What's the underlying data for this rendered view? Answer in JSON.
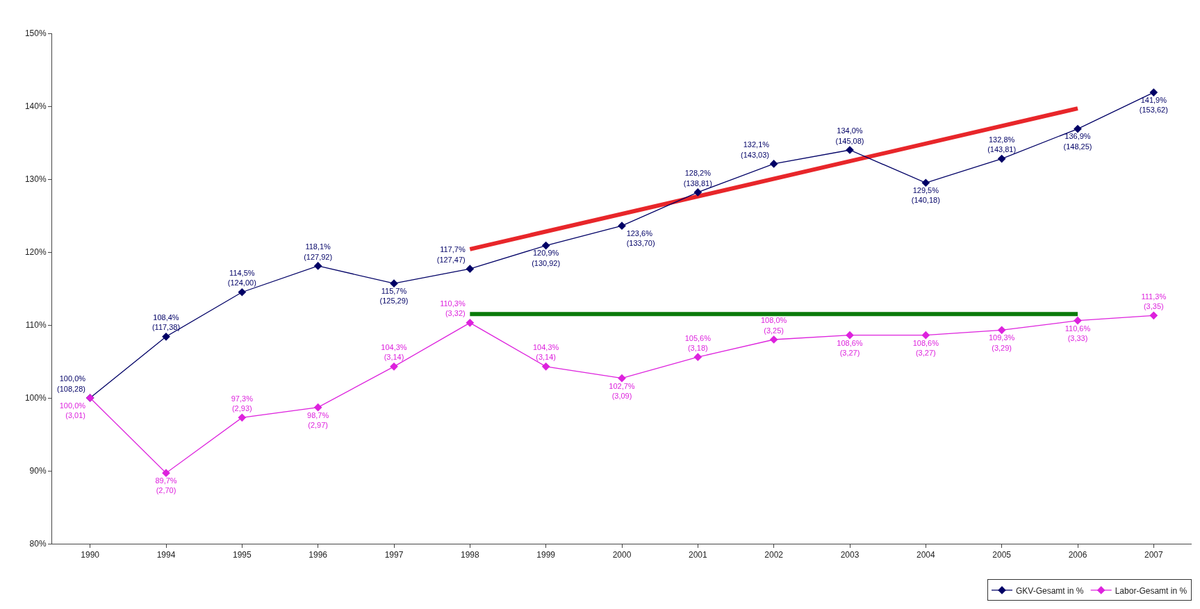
{
  "chart_data": {
    "type": "line",
    "categories": [
      "1990",
      "1994",
      "1995",
      "1996",
      "1997",
      "1998",
      "1999",
      "2000",
      "2001",
      "2002",
      "2003",
      "2004",
      "2005",
      "2006",
      "2007"
    ],
    "series": [
      {
        "name": "GKV-Gesamt in %",
        "color": "#000066",
        "marker": "diamond",
        "values": [
          100.0,
          108.4,
          114.5,
          118.1,
          115.7,
          117.7,
          120.9,
          123.6,
          128.2,
          132.1,
          134.0,
          129.5,
          132.8,
          136.9,
          141.9
        ],
        "value_labels": [
          "100,0%\n(108,28)",
          "108,4%\n(117,38)",
          "114,5%\n(124,00)",
          "118,1%\n(127,92)",
          "115,7%\n(125,29)",
          "117,7%\n(127,47)",
          "120,9%\n(130,92)",
          "123,6%\n(133,70)",
          "128,2%\n(138,81)",
          "132,1%\n(143,03)",
          "134,0%\n(145,08)",
          "129,5%\n(140,18)",
          "132,8%\n(143,81)",
          "136,9%\n(148,25)",
          "141,9%\n(153,62)"
        ]
      },
      {
        "name": "Labor-Gesamt in %",
        "color": "#dd22dd",
        "marker": "diamond",
        "values": [
          100.0,
          89.7,
          97.3,
          98.7,
          104.3,
          110.3,
          104.3,
          102.7,
          105.6,
          108.0,
          108.6,
          108.6,
          109.3,
          110.6,
          111.3
        ],
        "value_labels": [
          "100,0%\n(3,01)",
          "89,7%\n(2,70)",
          "97,3%\n(2,93)",
          "98,7%\n(2,97)",
          "104,3%\n(3,14)",
          "110,3%\n(3,32)",
          "104,3%\n(3,14)",
          "102,7%\n(3,09)",
          "105,6%\n(3,18)",
          "108,0%\n(3,25)",
          "108,6%\n(3,27)",
          "108,6%\n(3,27)",
          "109,3%\n(3,29)",
          "110,6%\n(3,33)",
          "111,3%\n(3,35)"
        ]
      },
      {
        "type": "line",
        "color": "#e8262a",
        "values": [
          null,
          null,
          null,
          null,
          null,
          120.4,
          null,
          null,
          null,
          null,
          null,
          null,
          null,
          139.7,
          null
        ]
      },
      {
        "type": "line",
        "color": "#0a7a0a",
        "values": [
          null,
          null,
          null,
          null,
          null,
          111.5,
          null,
          null,
          null,
          null,
          null,
          null,
          null,
          111.5,
          null
        ]
      }
    ],
    "ylim": [
      80,
      150
    ],
    "yticks": [
      {
        "value": 80,
        "label": "80%"
      },
      {
        "value": 90,
        "label": "90%"
      },
      {
        "value": 100,
        "label": "100%"
      },
      {
        "value": 110,
        "label": "110%"
      },
      {
        "value": 120,
        "label": "120%"
      },
      {
        "value": 130,
        "label": "130%"
      },
      {
        "value": 140,
        "label": "140%"
      },
      {
        "value": 150,
        "label": "150%"
      }
    ],
    "legend": "bottom right",
    "line_style": "solid"
  }
}
